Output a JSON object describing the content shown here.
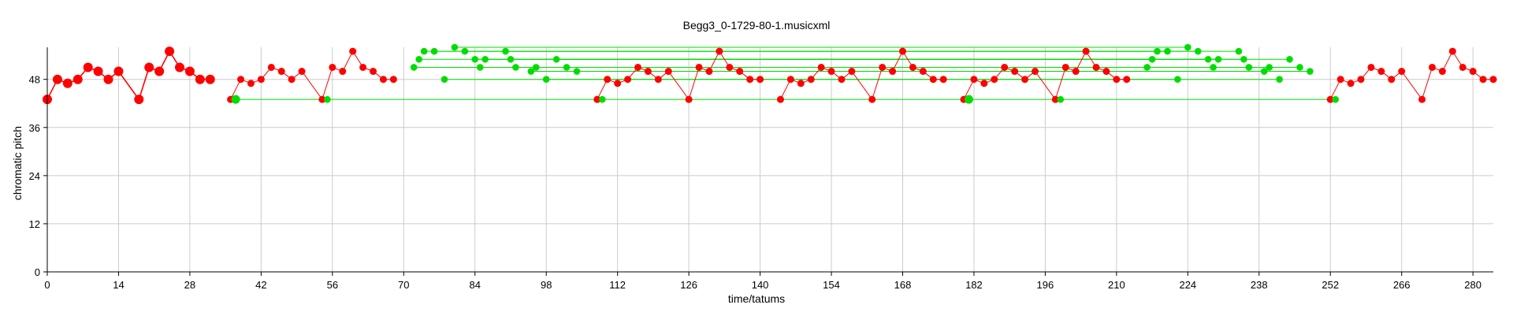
{
  "chart_data": {
    "type": "scatter",
    "title": "Begg3_0-1729-80-1.musicxml",
    "xlabel": "time/tatums",
    "ylabel": "chromatic pitch",
    "xlim": [
      0,
      284
    ],
    "ylim": [
      0,
      56
    ],
    "xticks": [
      0,
      14,
      28,
      42,
      56,
      70,
      84,
      98,
      112,
      126,
      140,
      154,
      168,
      182,
      196,
      210,
      224,
      238,
      252,
      266,
      280
    ],
    "yticks": [
      0,
      12,
      24,
      36,
      48
    ],
    "grid": true,
    "colors": {
      "melody": "#ff0000",
      "pattern": "#00dd00"
    },
    "series": [
      {
        "style": "melody-bold",
        "x": [
          0,
          2,
          4,
          6,
          8,
          10,
          12,
          14,
          18,
          20,
          22,
          24,
          26,
          28,
          30,
          32
        ],
        "y": [
          43,
          48,
          47,
          48,
          51,
          50,
          48,
          50,
          43,
          51,
          50,
          55,
          51,
          50,
          48,
          48
        ]
      },
      {
        "style": "melody",
        "x": [
          36,
          38,
          40,
          42,
          44,
          46,
          48,
          50,
          54,
          56,
          58,
          60,
          62,
          64,
          66,
          68
        ],
        "y": [
          43,
          48,
          47,
          48,
          51,
          50,
          48,
          50,
          43,
          51,
          50,
          55,
          51,
          50,
          48,
          48
        ]
      },
      {
        "style": "melody",
        "x": [
          108,
          110,
          112,
          114,
          116,
          118,
          120,
          122,
          126,
          128,
          130,
          132,
          134,
          136,
          138,
          140
        ],
        "y": [
          43,
          48,
          47,
          48,
          51,
          50,
          48,
          50,
          43,
          51,
          50,
          55,
          51,
          50,
          48,
          48
        ]
      },
      {
        "style": "melody",
        "x": [
          144,
          146,
          148,
          150,
          152,
          154,
          156,
          158,
          162,
          164,
          166,
          168,
          170,
          172,
          174,
          176
        ],
        "y": [
          43,
          48,
          47,
          48,
          51,
          50,
          48,
          50,
          43,
          51,
          50,
          55,
          51,
          50,
          48,
          48
        ]
      },
      {
        "style": "melody",
        "x": [
          180,
          182,
          184,
          186,
          188,
          190,
          192,
          194,
          198,
          200,
          202,
          204,
          206,
          208,
          210,
          212
        ],
        "y": [
          43,
          48,
          47,
          48,
          51,
          50,
          48,
          50,
          43,
          51,
          50,
          55,
          51,
          50,
          48,
          48
        ]
      },
      {
        "style": "melody",
        "x": [
          252,
          254,
          256,
          258,
          260,
          262,
          264,
          266,
          270,
          272,
          274,
          276,
          278,
          280,
          282,
          284
        ],
        "y": [
          43,
          48,
          47,
          48,
          51,
          50,
          48,
          50,
          43,
          51,
          50,
          55,
          51,
          50,
          48,
          48
        ]
      }
    ],
    "green_points": [
      {
        "x": 37,
        "y": 43,
        "size": "large"
      },
      {
        "x": 55,
        "y": 43
      },
      {
        "x": 109,
        "y": 43
      },
      {
        "x": 181,
        "y": 43,
        "size": "large"
      },
      {
        "x": 199,
        "y": 43
      },
      {
        "x": 253,
        "y": 43
      },
      {
        "x": 72,
        "y": 51
      },
      {
        "x": 73,
        "y": 53
      },
      {
        "x": 74,
        "y": 55
      },
      {
        "x": 76,
        "y": 55
      },
      {
        "x": 78,
        "y": 48
      },
      {
        "x": 80,
        "y": 56
      },
      {
        "x": 82,
        "y": 55
      },
      {
        "x": 84,
        "y": 53
      },
      {
        "x": 85,
        "y": 51
      },
      {
        "x": 86,
        "y": 53
      },
      {
        "x": 90,
        "y": 55
      },
      {
        "x": 91,
        "y": 53
      },
      {
        "x": 92,
        "y": 51
      },
      {
        "x": 95,
        "y": 50
      },
      {
        "x": 96,
        "y": 51
      },
      {
        "x": 98,
        "y": 48
      },
      {
        "x": 100,
        "y": 53
      },
      {
        "x": 102,
        "y": 51
      },
      {
        "x": 104,
        "y": 50
      },
      {
        "x": 216,
        "y": 51
      },
      {
        "x": 217,
        "y": 53
      },
      {
        "x": 218,
        "y": 55
      },
      {
        "x": 220,
        "y": 55
      },
      {
        "x": 222,
        "y": 48
      },
      {
        "x": 224,
        "y": 56
      },
      {
        "x": 226,
        "y": 55
      },
      {
        "x": 228,
        "y": 53
      },
      {
        "x": 229,
        "y": 51
      },
      {
        "x": 230,
        "y": 53
      },
      {
        "x": 234,
        "y": 55
      },
      {
        "x": 235,
        "y": 53
      },
      {
        "x": 236,
        "y": 51
      },
      {
        "x": 239,
        "y": 50
      },
      {
        "x": 240,
        "y": 51
      },
      {
        "x": 242,
        "y": 48
      },
      {
        "x": 244,
        "y": 53
      },
      {
        "x": 246,
        "y": 51
      },
      {
        "x": 248,
        "y": 50
      }
    ],
    "green_links": [
      {
        "x1": 37,
        "x2": 253,
        "y": 43
      },
      {
        "x1": 72,
        "x2": 216,
        "y": 51
      },
      {
        "x1": 73,
        "x2": 217,
        "y": 53
      },
      {
        "x1": 74,
        "x2": 218,
        "y": 55
      },
      {
        "x1": 76,
        "x2": 220,
        "y": 55
      },
      {
        "x1": 78,
        "x2": 222,
        "y": 48
      },
      {
        "x1": 80,
        "x2": 224,
        "y": 56
      },
      {
        "x1": 82,
        "x2": 226,
        "y": 55
      },
      {
        "x1": 84,
        "x2": 228,
        "y": 53
      },
      {
        "x1": 85,
        "x2": 229,
        "y": 51
      },
      {
        "x1": 86,
        "x2": 230,
        "y": 53
      },
      {
        "x1": 90,
        "x2": 234,
        "y": 55
      },
      {
        "x1": 91,
        "x2": 235,
        "y": 53
      },
      {
        "x1": 92,
        "x2": 236,
        "y": 51
      },
      {
        "x1": 95,
        "x2": 239,
        "y": 50
      },
      {
        "x1": 96,
        "x2": 240,
        "y": 51
      },
      {
        "x1": 98,
        "x2": 242,
        "y": 48
      },
      {
        "x1": 100,
        "x2": 244,
        "y": 53
      },
      {
        "x1": 102,
        "x2": 246,
        "y": 51
      },
      {
        "x1": 104,
        "x2": 248,
        "y": 50
      }
    ]
  }
}
